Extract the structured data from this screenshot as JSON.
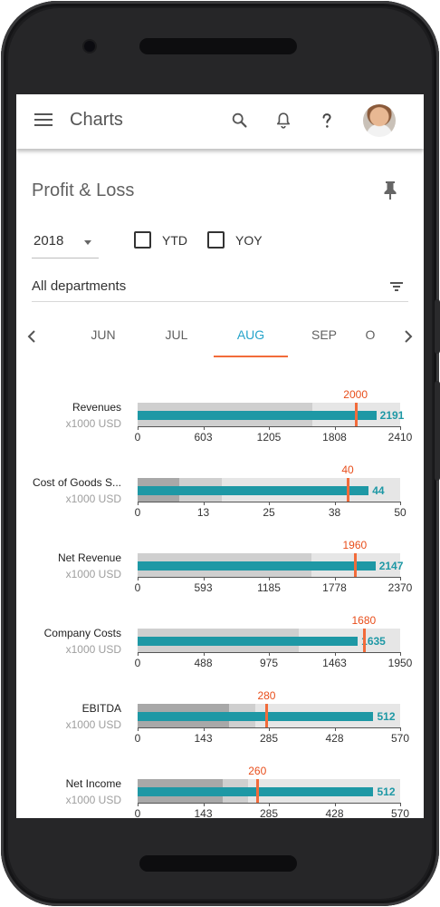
{
  "app": {
    "title": "Charts"
  },
  "header_icons": [
    "menu-icon",
    "search-icon",
    "bell-icon",
    "help-icon",
    "avatar"
  ],
  "card": {
    "title": "Profit & Loss"
  },
  "filters": {
    "year": "2018",
    "ytd_label": "YTD",
    "yoy_label": "YOY",
    "ytd_checked": false,
    "yoy_checked": false,
    "department": "All departments"
  },
  "months": {
    "items": [
      "JUN",
      "JUL",
      "AUG",
      "SEP",
      "O"
    ],
    "active": "AUG"
  },
  "colors": {
    "accent": "#26a4ca",
    "bar": "#1e98a5",
    "target": "#f26b3a",
    "band_light": "#e6e6e6",
    "band_mid": "#cfcfcf",
    "band_dark": "#a8a8a8"
  },
  "chart_data": [
    {
      "type": "bullet",
      "title": "Revenues",
      "unit": "x1000 USD",
      "value": 2191,
      "target": 2000,
      "range_max": 2410,
      "bands": [
        1600,
        2410
      ],
      "ticks": [
        "0",
        "603",
        "1205",
        "1808",
        "2410"
      ]
    },
    {
      "type": "bullet",
      "title": "Cost of Goods S...",
      "unit": "x1000 USD",
      "value": 44,
      "target": 40,
      "range_max": 50,
      "bands": [
        8,
        16,
        50
      ],
      "ticks": [
        "0",
        "13",
        "25",
        "38",
        "50"
      ]
    },
    {
      "type": "bullet",
      "title": "Net Revenue",
      "unit": "x1000 USD",
      "value": 2147,
      "target": 1960,
      "range_max": 2370,
      "bands": [
        1570,
        2370
      ],
      "ticks": [
        "0",
        "593",
        "1185",
        "1778",
        "2370"
      ]
    },
    {
      "type": "bullet",
      "title": "Company Costs",
      "unit": "x1000 USD",
      "value": 1635,
      "target": 1680,
      "range_max": 1950,
      "bands": [
        1200,
        1950
      ],
      "ticks": [
        "0",
        "488",
        "975",
        "1463",
        "1950"
      ]
    },
    {
      "type": "bullet",
      "title": "EBITDA",
      "unit": "x1000 USD",
      "value": 512,
      "target": 280,
      "range_max": 570,
      "bands": [
        198,
        255,
        570
      ],
      "ticks": [
        "0",
        "143",
        "285",
        "428",
        "570"
      ]
    },
    {
      "type": "bullet",
      "title": "Net Income",
      "unit": "x1000 USD",
      "value": 512,
      "target": 260,
      "range_max": 570,
      "bands": [
        185,
        240,
        570
      ],
      "ticks": [
        "0",
        "143",
        "285",
        "428",
        "570"
      ]
    }
  ]
}
